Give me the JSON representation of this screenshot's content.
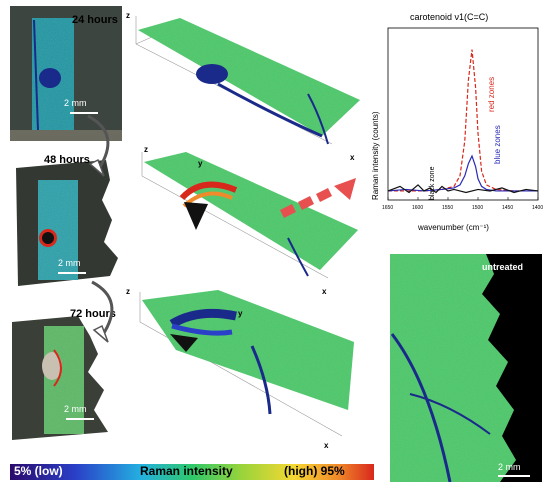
{
  "time_labels": [
    "24 hours",
    "48 hours",
    "72 hours"
  ],
  "scale_label": "2 mm",
  "axis_labels": {
    "x": "x",
    "y": "y",
    "z": "z"
  },
  "colorbar": {
    "low": "5% (low)",
    "title": "Raman intensity",
    "high": "(high) 95%",
    "colors": [
      "#2a0a6b",
      "#2a40c8",
      "#24b0e0",
      "#2ec86a",
      "#9bd43a",
      "#f5d833",
      "#f08a2a",
      "#d8281c"
    ]
  },
  "untreated_label": "untreated",
  "chart_data": {
    "type": "line",
    "title": "carotenoid ν1(C=C)",
    "xlabel": "wavenumber (cm⁻¹)",
    "ylabel": "Raman intensity (counts)",
    "x_ticks": [
      "1650",
      "1600",
      "1550",
      "1500",
      "1450",
      "1400"
    ],
    "xlim": [
      1650,
      1400
    ],
    "series": [
      {
        "name": "red zones",
        "color": "#d8281c",
        "dashed": true,
        "x": [
          1650,
          1620,
          1590,
          1560,
          1540,
          1530,
          1522,
          1516,
          1510,
          1504,
          1500,
          1494,
          1486,
          1470,
          1440,
          1400
        ],
        "y": [
          0.02,
          0.02,
          0.02,
          0.03,
          0.05,
          0.12,
          0.35,
          0.75,
          0.95,
          0.7,
          0.4,
          0.15,
          0.06,
          0.03,
          0.02,
          0.02
        ]
      },
      {
        "name": "blue zones",
        "color": "#2a2ab8",
        "x": [
          1650,
          1620,
          1590,
          1560,
          1540,
          1530,
          1522,
          1516,
          1510,
          1504,
          1500,
          1494,
          1486,
          1470,
          1440,
          1400
        ],
        "y": [
          0.02,
          0.03,
          0.02,
          0.03,
          0.04,
          0.06,
          0.12,
          0.2,
          0.25,
          0.18,
          0.1,
          0.05,
          0.03,
          0.02,
          0.02,
          0.02
        ]
      },
      {
        "name": "black zone",
        "color": "#111111",
        "x": [
          1650,
          1630,
          1615,
          1600,
          1590,
          1580,
          1570,
          1560,
          1550,
          1540,
          1520,
          1500,
          1480,
          1460,
          1440,
          1420,
          1400
        ],
        "y": [
          0.02,
          0.05,
          0.01,
          0.06,
          0.02,
          0.04,
          0.01,
          0.05,
          0.02,
          0.03,
          0.01,
          0.03,
          0.02,
          0.04,
          0.01,
          0.03,
          0.02
        ]
      }
    ]
  }
}
